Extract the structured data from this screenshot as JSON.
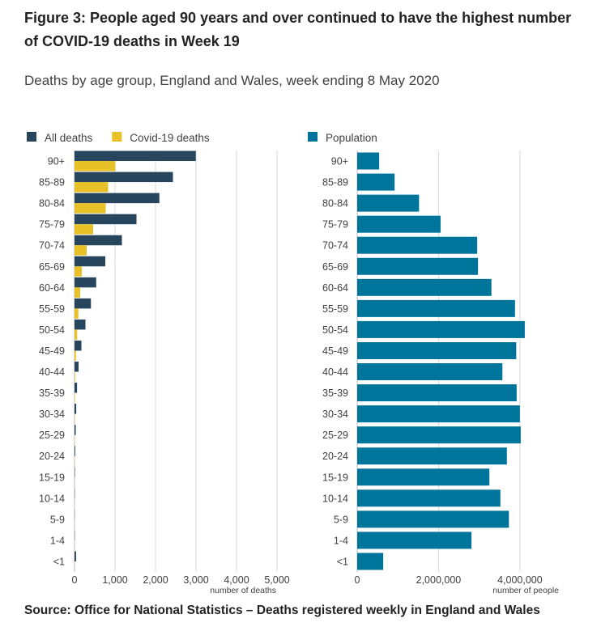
{
  "title": "Figure 3: People aged 90 years and over continued to have the highest number of COVID-19 deaths in Week 19",
  "subtitle": "Deaths by age group, England and Wales, week ending 8 May 2020",
  "source": "Source: Office for National Statistics – Deaths registered weekly in England and Wales",
  "chart_data": [
    {
      "type": "bar",
      "orientation": "horizontal",
      "categories": [
        "90+",
        "85-89",
        "80-84",
        "75-79",
        "70-74",
        "65-69",
        "60-64",
        "55-59",
        "50-54",
        "45-49",
        "40-44",
        "35-39",
        "30-34",
        "25-29",
        "20-24",
        "15-19",
        "10-14",
        "5-9",
        "1-4",
        "<1"
      ],
      "series": [
        {
          "name": "All deaths",
          "color": "#27455c",
          "values": [
            2995,
            2430,
            2095,
            1530,
            1170,
            760,
            535,
            405,
            270,
            170,
            100,
            62,
            42,
            30,
            18,
            10,
            6,
            4,
            6,
            38
          ]
        },
        {
          "name": "Covid-19 deaths",
          "color": "#e8c027",
          "values": [
            1010,
            830,
            770,
            460,
            300,
            180,
            140,
            95,
            65,
            35,
            15,
            10,
            6,
            4,
            2,
            1,
            0,
            0,
            0,
            0
          ]
        }
      ],
      "xlabel": "number of deaths",
      "xlim": [
        0,
        5000
      ],
      "xticks": [
        0,
        1000,
        2000,
        3000,
        4000,
        5000
      ],
      "xtick_labels": [
        "0",
        "1,000",
        "2,000",
        "3,000",
        "4,000",
        "5,000"
      ],
      "grid": true,
      "legend": "top-left"
    },
    {
      "type": "bar",
      "orientation": "horizontal",
      "categories": [
        "90+",
        "85-89",
        "80-84",
        "75-79",
        "70-74",
        "65-69",
        "60-64",
        "55-59",
        "50-54",
        "45-49",
        "40-44",
        "35-39",
        "30-34",
        "25-29",
        "20-24",
        "15-19",
        "10-14",
        "5-9",
        "1-4",
        "<1"
      ],
      "series": [
        {
          "name": "Population",
          "color": "#00759b",
          "values": [
            540000,
            920000,
            1520000,
            2050000,
            2950000,
            2970000,
            3300000,
            3880000,
            4120000,
            3910000,
            3570000,
            3920000,
            4000000,
            4020000,
            3680000,
            3250000,
            3520000,
            3730000,
            2810000,
            640000
          ]
        }
      ],
      "xlabel": "number of people",
      "xlim": [
        0,
        4600000
      ],
      "xticks": [
        0,
        2000000,
        4000000
      ],
      "xtick_labels": [
        "0",
        "2,000,000",
        "4,000,000"
      ],
      "grid": true,
      "legend": "top-left"
    }
  ]
}
